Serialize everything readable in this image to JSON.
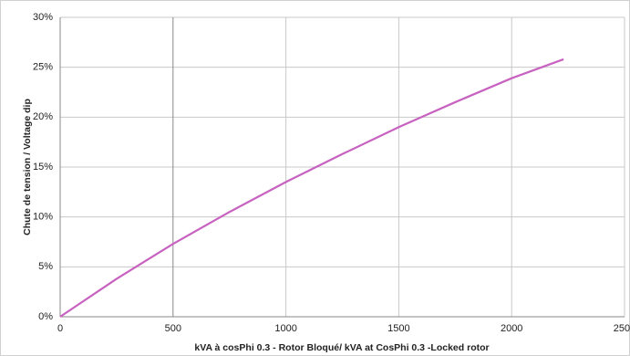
{
  "chart_data": {
    "type": "line",
    "x_label": "kVA à cosPhi 0.3 - Rotor Bloqué/ kVA at CosPhi 0.3 -Locked rotor",
    "y_label": "Chute de tension / Voltage dip",
    "x": [
      0,
      250,
      500,
      750,
      1000,
      1250,
      1500,
      1750,
      2000,
      2230
    ],
    "series": [
      {
        "name": "Voltage dip",
        "color": "#c862c0",
        "values": [
          0,
          3.8,
          7.3,
          10.5,
          13.5,
          16.3,
          19.0,
          21.5,
          23.9,
          25.8
        ]
      }
    ],
    "xlim": [
      0,
      2500
    ],
    "xticks": [
      0,
      500,
      1000,
      1500,
      2000,
      2500
    ],
    "ylim": [
      0,
      30
    ],
    "yticks": [
      {
        "value": 0,
        "label": "0%"
      },
      {
        "value": 5,
        "label": "5%"
      },
      {
        "value": 10,
        "label": "10%"
      },
      {
        "value": 15,
        "label": "15%"
      },
      {
        "value": 20,
        "label": "20%"
      },
      {
        "value": 25,
        "label": "25%"
      },
      {
        "value": 30,
        "label": "30%"
      }
    ],
    "grid": true
  }
}
